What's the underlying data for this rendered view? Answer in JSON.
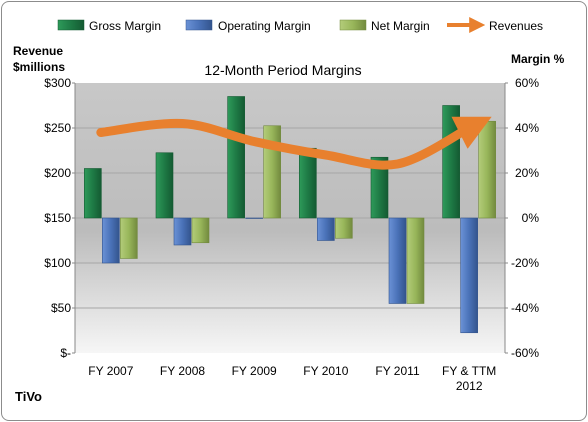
{
  "chart_data": {
    "type": "bar",
    "title": "12-Month Period Margins",
    "left_axis_title_line1": "Revenue",
    "left_axis_title_line2": "$millions",
    "right_axis_title": "Margin %",
    "company": "TiVo",
    "categories": [
      {
        "line1": "FY 2007",
        "line2": ""
      },
      {
        "line1": "FY 2008",
        "line2": ""
      },
      {
        "line1": "FY 2009",
        "line2": ""
      },
      {
        "line1": "FY 2010",
        "line2": ""
      },
      {
        "line1": "FY 2011",
        "line2": ""
      },
      {
        "line1": "FY & TTM",
        "line2": "2012"
      }
    ],
    "legend": {
      "gross": "Gross Margin",
      "operating": "Operating Margin",
      "net": "Net Margin",
      "revenues": "Revenues"
    },
    "left_axis": {
      "min": 0,
      "max": 300,
      "step": 50,
      "tick_labels": [
        "$-",
        "$50",
        "$100",
        "$150",
        "$200",
        "$250",
        "$300"
      ]
    },
    "right_axis": {
      "min": -60,
      "max": 60,
      "step": 20,
      "tick_labels": [
        "-60%",
        "-40%",
        "-20%",
        "0%",
        "20%",
        "40%",
        "60%"
      ]
    },
    "series": [
      {
        "key": "gross",
        "name": "Gross Margin",
        "axis": "right",
        "color": "#1e7a45",
        "values": [
          22,
          29,
          54,
          31,
          27,
          50
        ]
      },
      {
        "key": "operating",
        "name": "Operating Margin",
        "axis": "right",
        "color": "#4a72b8",
        "values": [
          -20,
          -12,
          0,
          -10,
          -38,
          -51
        ]
      },
      {
        "key": "net",
        "name": "Net Margin",
        "axis": "right",
        "color": "#98b65a",
        "values": [
          -18,
          -11,
          41,
          -9,
          -38,
          43
        ]
      },
      {
        "key": "revenues",
        "name": "Revenues",
        "axis": "left",
        "color": "#e8802e",
        "values": [
          245,
          255,
          235,
          220,
          210,
          250
        ]
      }
    ],
    "grid": true,
    "legend_placement": "top"
  }
}
